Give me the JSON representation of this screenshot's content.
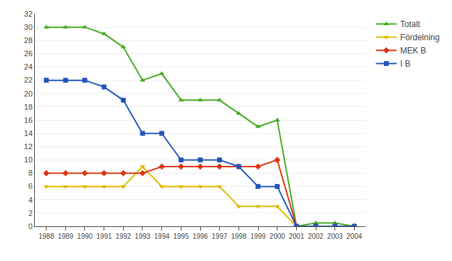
{
  "chart_data": {
    "type": "line",
    "x": [
      1988,
      1989,
      1990,
      1991,
      1992,
      1993,
      1994,
      1995,
      1996,
      1997,
      1998,
      1999,
      2000,
      2001,
      2002,
      2003,
      2004
    ],
    "series": [
      {
        "name": "Totalt",
        "color": "#44AA22",
        "marker": "triangle-up",
        "line_style": "solid",
        "values": [
          30,
          30,
          30,
          29,
          27,
          22,
          23,
          19,
          19,
          19,
          17,
          15,
          16,
          0,
          0.5,
          0.5,
          0
        ]
      },
      {
        "name": "Fördelning",
        "color": "#DDBB00",
        "marker": "triangle-down",
        "line_style": "solid",
        "values": [
          6,
          6,
          6,
          6,
          6,
          9,
          6,
          6,
          6,
          6,
          3,
          3,
          3,
          0,
          0,
          0,
          0
        ]
      },
      {
        "name": "MEK B",
        "color": "#DD3311",
        "marker": "diamond",
        "line_style": "solid",
        "values": [
          8,
          8,
          8,
          8,
          8,
          8,
          9,
          9,
          9,
          9,
          9,
          9,
          10,
          0,
          0,
          0,
          0
        ]
      },
      {
        "name": "I B",
        "color": "#2255BB",
        "marker": "square",
        "line_style": "solid",
        "values": [
          22,
          22,
          22,
          21,
          19,
          14,
          14,
          10,
          10,
          10,
          9,
          6,
          6,
          0,
          0,
          0,
          0
        ]
      }
    ],
    "xlim": [
      1987.4,
      2004.6
    ],
    "xticks": [
      1988,
      1989,
      1990,
      1991,
      1992,
      1993,
      1994,
      1995,
      1996,
      1997,
      1998,
      1999,
      2000,
      2001,
      2002,
      2003,
      2004
    ],
    "ylim": [
      0,
      32
    ],
    "yticks": [
      0,
      2,
      4,
      6,
      8,
      10,
      12,
      14,
      16,
      18,
      20,
      22,
      24,
      26,
      28,
      30,
      32
    ],
    "grid": true,
    "legend": "right"
  }
}
